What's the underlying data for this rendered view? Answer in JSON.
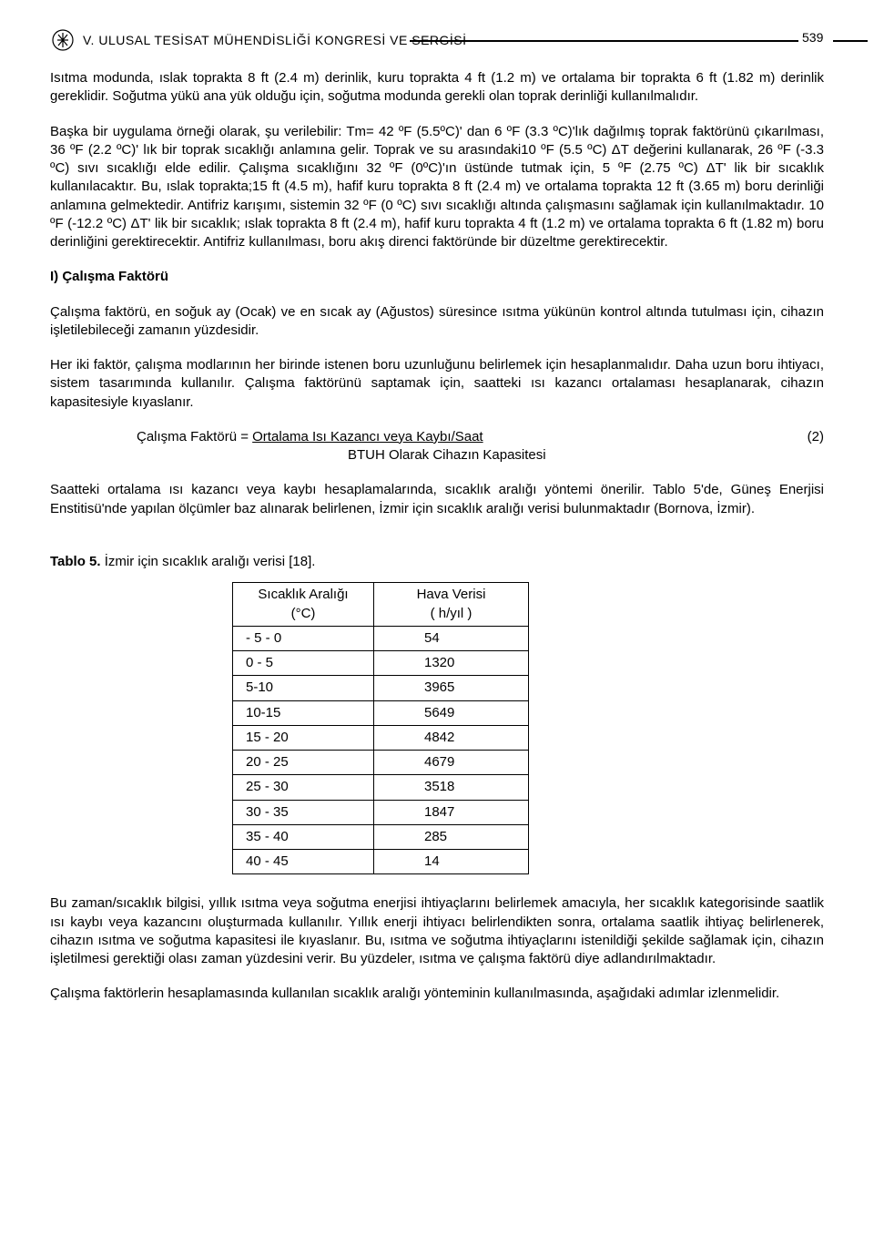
{
  "header": {
    "title": "V. ULUSAL TESİSAT MÜHENDİSLİĞİ KONGRESİ VE SERGİSİ",
    "page_number": "539"
  },
  "paragraphs": {
    "p1": "Isıtma modunda, ıslak toprakta 8 ft (2.4 m) derinlik, kuru toprakta 4 ft (1.2 m) ve ortalama bir toprakta 6 ft (1.82 m) derinlik gereklidir. Soğutma yükü ana yük olduğu için, soğutma modunda gerekli olan toprak derinliği kullanılmalıdır.",
    "p2": "Başka bir uygulama örneği olarak, şu verilebilir: Tm= 42 ºF (5.5ºC)' dan 6 ºF (3.3 ºC)'lık dağılmış toprak faktörünü çıkarılması, 36 ºF (2.2 ºC)' lık bir toprak sıcaklığı anlamına gelir. Toprak ve su arasındaki10 ºF (5.5 ºC) ΔT değerini kullanarak, 26 ºF (-3.3 ºC) sıvı sıcaklığı elde edilir. Çalışma sıcaklığını 32 ºF (0ºC)'ın üstünde tutmak için, 5 ºF (2.75 ºC) ΔT' lik bir sıcaklık kullanılacaktır. Bu, ıslak toprakta;15 ft (4.5 m), hafif kuru toprakta 8 ft (2.4 m) ve ortalama toprakta 12 ft (3.65 m) boru derinliği anlamına gelmektedir. Antifriz karışımı, sistemin 32 ºF (0 ºC) sıvı sıcaklığı altında çalışmasını sağlamak için kullanılmaktadır. 10 ºF (-12.2 ºC) ΔT' lik bir sıcaklık; ıslak toprakta 8 ft (2.4 m), hafif kuru toprakta 4 ft (1.2 m) ve ortalama toprakta 6 ft (1.82 m) boru derinliğini gerektirecektir. Antifriz kullanılması, boru akış direnci faktöründe bir düzeltme gerektirecektir.",
    "section_i": "I) Çalışma Faktörü",
    "p3": "Çalışma faktörü, en soğuk ay (Ocak) ve en sıcak ay (Ağustos) süresince ısıtma yükünün kontrol altında tutulması için, cihazın işletilebileceği zamanın yüzdesidir.",
    "p4": "Her iki faktör, çalışma modlarının her birinde istenen boru uzunluğunu belirlemek için hesaplanmalıdır. Daha uzun boru ihtiyacı, sistem tasarımında kullanılır. Çalışma faktörünü saptamak için, saatteki ısı kazancı ortalaması hesaplanarak, cihazın kapasitesiyle kıyaslanır.",
    "formula_label": "Çalışma Faktörü = ",
    "formula_numer": "Ortalama Isı Kazancı veya Kaybı/Saat",
    "formula_denom": "BTUH Olarak Cihazın Kapasitesi",
    "formula_num": "(2)",
    "p5": "Saatteki ortalama ısı kazancı veya kaybı hesaplamalarında, sıcaklık aralığı yöntemi önerilir. Tablo 5'de, Güneş Enerjisi Enstitisü'nde yapılan ölçümler baz alınarak belirlenen, İzmir için sıcaklık aralığı verisi bulunmaktadır (Bornova, İzmir).",
    "table_caption_bold": "Tablo 5.",
    "table_caption_rest": " İzmir için sıcaklık aralığı verisi [18].",
    "p6": "Bu zaman/sıcaklık bilgisi, yıllık ısıtma veya soğutma enerjisi ihtiyaçlarını belirlemek amacıyla, her sıcaklık kategorisinde saatlik ısı kaybı veya kazancını oluşturmada kullanılır. Yıllık enerji ihtiyacı belirlendikten sonra, ortalama saatlik ihtiyaç belirlenerek, cihazın ısıtma ve soğutma kapasitesi ile kıyaslanır. Bu, ısıtma ve soğutma ihtiyaçlarını istenildiği şekilde sağlamak için, cihazın işletilmesi gerektiği olası zaman yüzdesini verir. Bu yüzdeler, ısıtma ve çalışma faktörü diye adlandırılmaktadır.",
    "p7": "Çalışma faktörlerin hesaplamasında kullanılan sıcaklık aralığı yönteminin kullanılmasında, aşağıdaki adımlar izlenmelidir."
  },
  "table": {
    "header_col1_line1": "Sıcaklık Aralığı",
    "header_col1_line2": "(°C)",
    "header_col2_line1": "Hava Verisi",
    "header_col2_line2": "( h/yıl )",
    "rows": [
      {
        "range": "- 5 - 0",
        "value": "54"
      },
      {
        "range": "0 - 5",
        "value": "1320"
      },
      {
        "range": "5-10",
        "value": "3965"
      },
      {
        "range": "10-15",
        "value": "5649"
      },
      {
        "range": "15 - 20",
        "value": "4842"
      },
      {
        "range": "20 - 25",
        "value": "4679"
      },
      {
        "range": "25 - 30",
        "value": "3518"
      },
      {
        "range": "30 - 35",
        "value": "1847"
      },
      {
        "range": "35 - 40",
        "value": "285"
      },
      {
        "range": "40 - 45",
        "value": "14"
      }
    ]
  }
}
